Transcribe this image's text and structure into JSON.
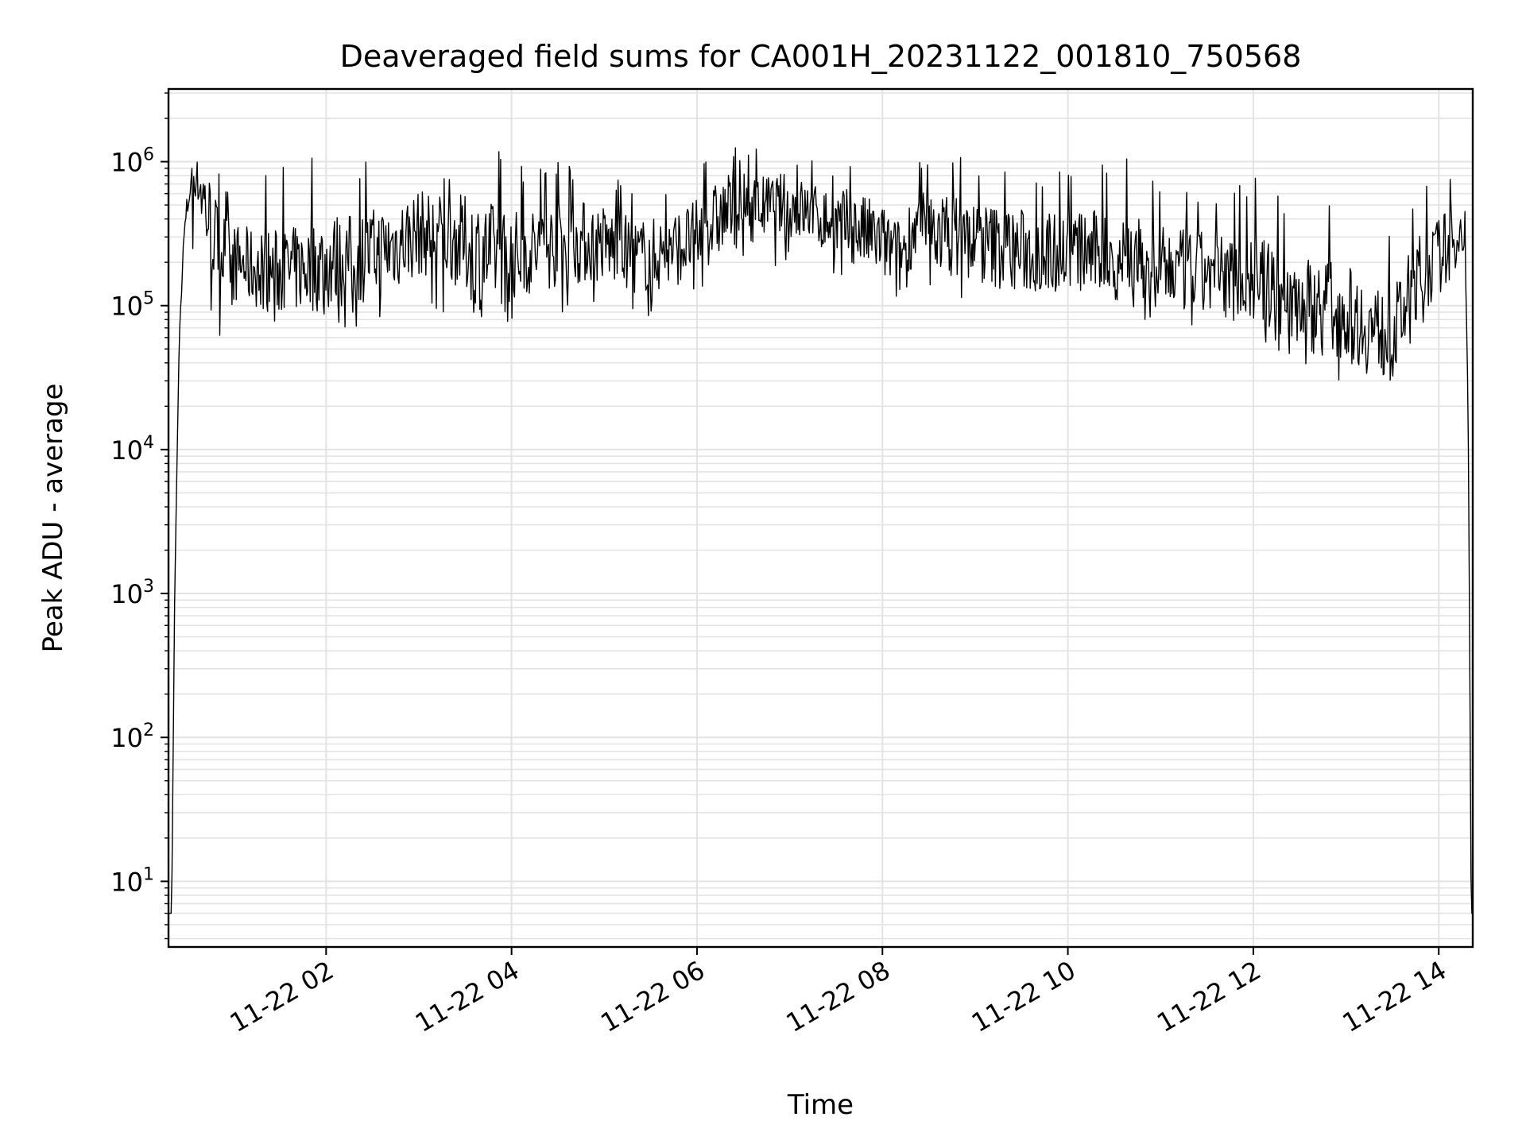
{
  "chart_data": {
    "type": "line",
    "title": "Deaveraged field sums for CA001H_20231122_001810_750568",
    "xlabel": "Time",
    "ylabel": "Peak ADU - average",
    "yscale": "log",
    "xlim": [
      "2023-11-22 00:18",
      "2023-11-22 14:22"
    ],
    "ylim": [
      3.5,
      3200000
    ],
    "grid": true,
    "line_color": "#000000",
    "x_ticks": [
      {
        "value": "2023-11-22 02:00",
        "label": "11-22 02"
      },
      {
        "value": "2023-11-22 04:00",
        "label": "11-22 04"
      },
      {
        "value": "2023-11-22 06:00",
        "label": "11-22 06"
      },
      {
        "value": "2023-11-22 08:00",
        "label": "11-22 08"
      },
      {
        "value": "2023-11-22 10:00",
        "label": "11-22 10"
      },
      {
        "value": "2023-11-22 12:00",
        "label": "11-22 12"
      },
      {
        "value": "2023-11-22 14:00",
        "label": "11-22 14"
      }
    ],
    "y_ticks": [
      {
        "value": 10,
        "base": "10",
        "exp": "1"
      },
      {
        "value": 100,
        "base": "10",
        "exp": "2"
      },
      {
        "value": 1000,
        "base": "10",
        "exp": "3"
      },
      {
        "value": 10000,
        "base": "10",
        "exp": "4"
      },
      {
        "value": 100000,
        "base": "10",
        "exp": "5"
      },
      {
        "value": 1000000,
        "base": "10",
        "exp": "6"
      }
    ],
    "series": [
      {
        "x": [
          "2023-11-22 00:18",
          "2023-11-22 00:20",
          "2023-11-22 00:22",
          "2023-11-22 00:25",
          "2023-11-22 00:28",
          "2023-11-22 00:32",
          "2023-11-22 00:36",
          "2023-11-22 00:40",
          "2023-11-22 00:44",
          "2023-11-22 00:50",
          "2023-11-22 01:00",
          "2023-11-22 01:15",
          "2023-11-22 01:30",
          "2023-11-22 01:45",
          "2023-11-22 02:00",
          "2023-11-22 02:20",
          "2023-11-22 02:40",
          "2023-11-22 03:00",
          "2023-11-22 03:20",
          "2023-11-22 03:40",
          "2023-11-22 04:00",
          "2023-11-22 04:20",
          "2023-11-22 04:40",
          "2023-11-22 05:00",
          "2023-11-22 05:20",
          "2023-11-22 05:40",
          "2023-11-22 06:00",
          "2023-11-22 06:20",
          "2023-11-22 06:40",
          "2023-11-22 07:00",
          "2023-11-22 07:20",
          "2023-11-22 07:40",
          "2023-11-22 08:00",
          "2023-11-22 08:10",
          "2023-11-22 08:20",
          "2023-11-22 08:40",
          "2023-11-22 09:00",
          "2023-11-22 09:20",
          "2023-11-22 09:40",
          "2023-11-22 10:00",
          "2023-11-22 10:20",
          "2023-11-22 10:40",
          "2023-11-22 11:00",
          "2023-11-22 11:20",
          "2023-11-22 11:40",
          "2023-11-22 12:00",
          "2023-11-22 12:20",
          "2023-11-22 12:40",
          "2023-11-22 13:00",
          "2023-11-22 13:15",
          "2023-11-22 13:30",
          "2023-11-22 13:45",
          "2023-11-22 14:00",
          "2023-11-22 14:10",
          "2023-11-22 14:17",
          "2023-11-22 14:19",
          "2023-11-22 14:20",
          "2023-11-22 14:21",
          "2023-11-22 14:22"
        ],
        "y": [
          6,
          6,
          1000,
          60000,
          300000,
          700000,
          850000,
          600000,
          400000,
          250000,
          200000,
          180000,
          170000,
          180000,
          200000,
          210000,
          250000,
          320000,
          300000,
          230000,
          220000,
          250000,
          280000,
          270000,
          220000,
          230000,
          300000,
          450000,
          480000,
          500000,
          400000,
          350000,
          280000,
          200000,
          350000,
          320000,
          280000,
          250000,
          230000,
          240000,
          230000,
          220000,
          180000,
          170000,
          160000,
          150000,
          120000,
          100000,
          90000,
          70000,
          60000,
          150000,
          220000,
          300000,
          330000,
          20000,
          500,
          6,
          6
        ],
        "max": [
          6,
          6,
          1000,
          60000,
          400000,
          900000,
          900000,
          1800000,
          1700000,
          900000,
          800000,
          800000,
          900000,
          1000000,
          1300000,
          1000000,
          1200000,
          1100000,
          1000000,
          1900000,
          1000000,
          1000000,
          1000000,
          900000,
          700000,
          700000,
          900000,
          1500000,
          1300000,
          1200000,
          1000000,
          1100000,
          800000,
          1000000,
          1200000,
          1300000,
          1000000,
          900000,
          800000,
          900000,
          1000000,
          1300000,
          800000,
          700000,
          700000,
          800000,
          600000,
          500000,
          500000,
          400000,
          400000,
          600000,
          800000,
          1100000,
          600000,
          20000,
          500,
          6,
          6
        ],
        "min": [
          6,
          6,
          1000,
          60000,
          200000,
          250000,
          200000,
          120000,
          90000,
          60000,
          80000,
          80000,
          70000,
          80000,
          70000,
          70000,
          80000,
          90000,
          80000,
          70000,
          70000,
          80000,
          80000,
          90000,
          80000,
          80000,
          100000,
          150000,
          200000,
          180000,
          150000,
          120000,
          90000,
          80000,
          150000,
          120000,
          90000,
          70000,
          70000,
          80000,
          80000,
          90000,
          70000,
          60000,
          60000,
          60000,
          40000,
          30000,
          30000,
          25000,
          30000,
          50000,
          80000,
          150000,
          200000,
          20000,
          500,
          6,
          6
        ]
      }
    ]
  }
}
